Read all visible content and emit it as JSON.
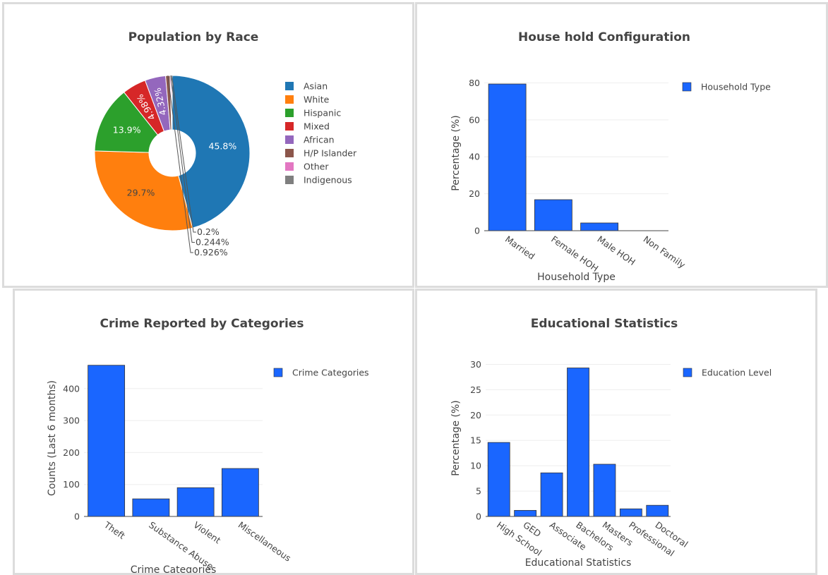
{
  "panels": {
    "race": {
      "chart_data": {
        "type": "pie",
        "title": "Population by Race",
        "categories": [
          "Asian",
          "White",
          "Hispanic",
          "Mixed",
          "African",
          "H/P Islander",
          "Other",
          "Indigenous"
        ],
        "values": [
          45.8,
          29.7,
          13.9,
          4.98,
          4.32,
          0.926,
          0.244,
          0.2
        ],
        "labels": [
          "45.8%",
          "29.7%",
          "13.9%",
          "4.98%",
          "4.32%",
          "0.926%",
          "0.244%",
          "0.2%"
        ],
        "colors": [
          "#1f77b4",
          "#ff7f0e",
          "#2ca02c",
          "#d62728",
          "#9467bd",
          "#8c564b",
          "#e377c2",
          "#7f7f7f"
        ],
        "hole": true,
        "legend": "right"
      }
    },
    "household": {
      "chart_data": {
        "type": "bar",
        "title": "House hold Configuration",
        "categories": [
          "Married",
          "Female HOH",
          "Male HOH",
          "Non Family"
        ],
        "values": [
          79.4,
          16.8,
          4.2,
          0
        ],
        "xlabel": "Household Type",
        "ylabel": "Percentage (%)",
        "ylim": [
          0,
          84
        ],
        "yticks": [
          0,
          20,
          40,
          60,
          80
        ],
        "series": [
          {
            "name": "Household Type",
            "color": "#1a66ff"
          }
        ],
        "grid": true,
        "legend": "top-right"
      }
    },
    "crime": {
      "chart_data": {
        "type": "bar",
        "title": "Crime Reported by Categories",
        "categories": [
          "Theft",
          "Substance Abuse",
          "Violent",
          "Miscellaneous"
        ],
        "values": [
          473,
          55,
          90,
          150
        ],
        "xlabel": "Crime Categories",
        "ylabel": "Counts (Last 6 months)",
        "ylim": [
          0,
          490
        ],
        "yticks": [
          0,
          100,
          200,
          300,
          400
        ],
        "series": [
          {
            "name": "Crime Categories",
            "color": "#1a66ff"
          }
        ],
        "grid": true,
        "legend": "top-right"
      }
    },
    "education": {
      "chart_data": {
        "type": "bar",
        "title": "Educational Statistics",
        "categories": [
          "High School",
          "GED",
          "Associate",
          "Bachelors",
          "Masters",
          "Professional",
          "Doctoral"
        ],
        "values": [
          14.6,
          1.2,
          8.6,
          29.3,
          10.3,
          1.5,
          2.2
        ],
        "xlabel": "Educational Statistics",
        "ylabel": "Percentage (%)",
        "ylim": [
          0,
          30.9
        ],
        "yticks": [
          0,
          5,
          10,
          15,
          20,
          25,
          30
        ],
        "series": [
          {
            "name": "Education Level",
            "color": "#1a66ff"
          }
        ],
        "grid": true,
        "legend": "top-right"
      }
    }
  }
}
